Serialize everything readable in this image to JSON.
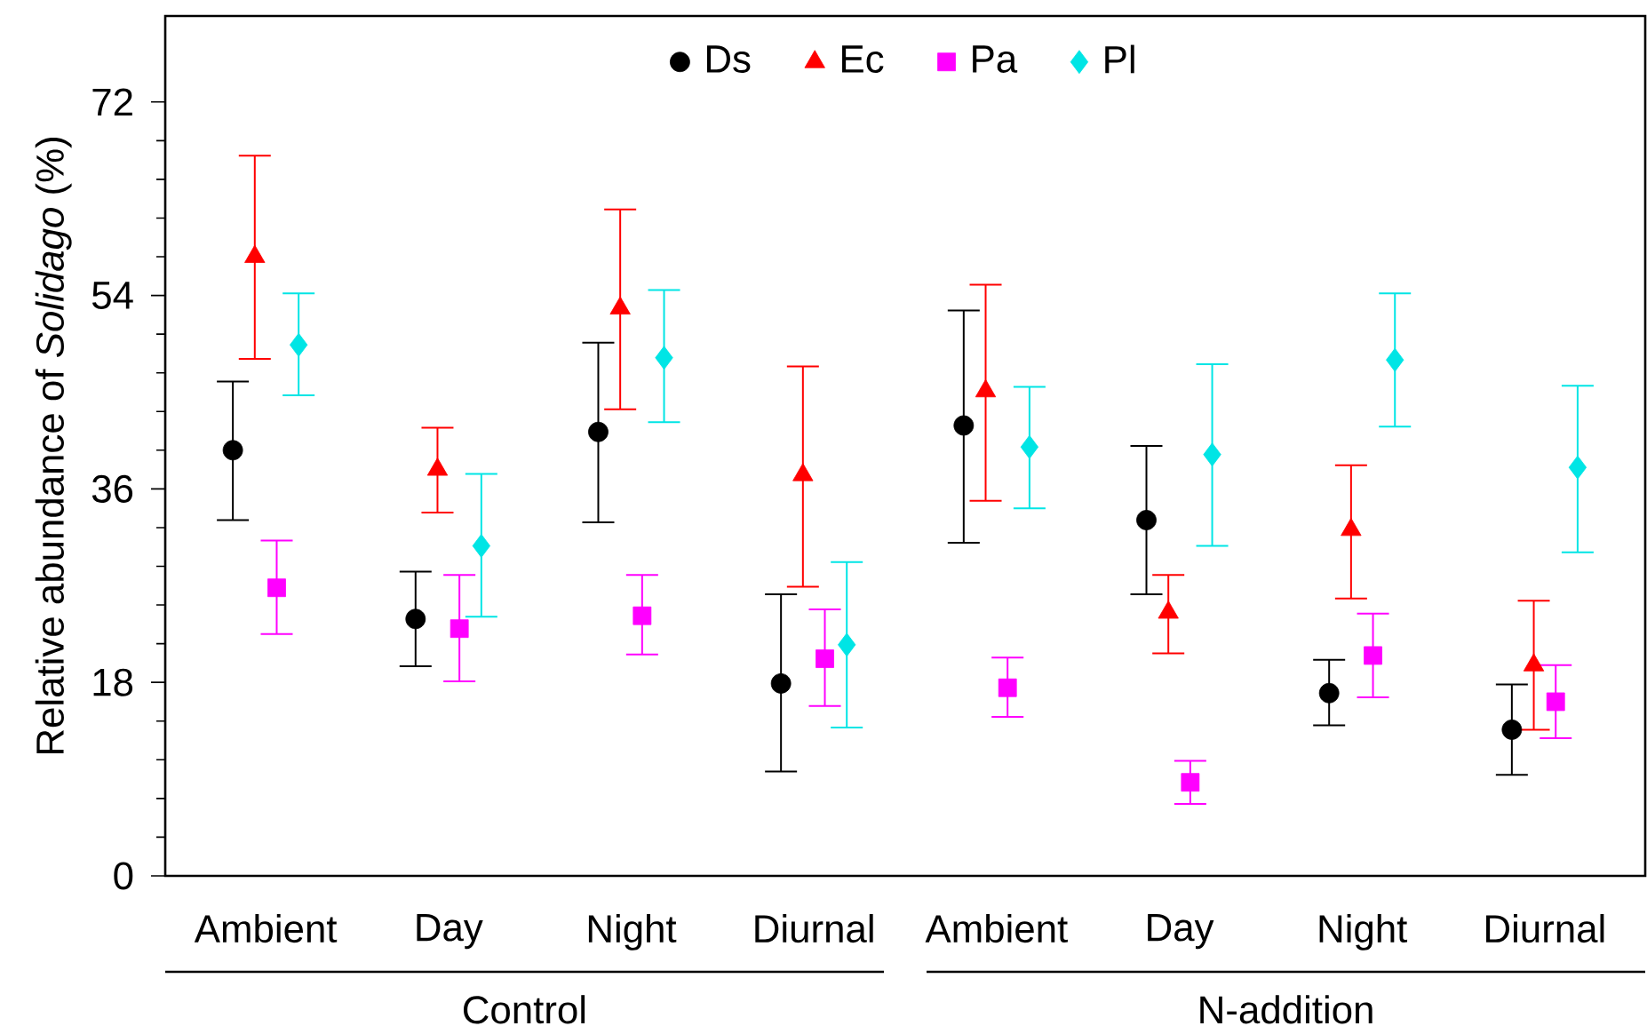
{
  "chart_data": {
    "type": "scatter",
    "ylabel": "Relative abundance of *Solidago* (%)",
    "categories": [
      "Ambient",
      "Day",
      "Night",
      "Diurnal",
      "Ambient",
      "Day",
      "Night",
      "Diurnal"
    ],
    "ylim": [
      0,
      80
    ],
    "yticks": [
      0,
      18,
      36,
      54,
      72
    ],
    "grid": false,
    "legend": "top",
    "annotations": [
      "Control",
      "N-addition"
    ],
    "series": [
      {
        "name": "Ds",
        "color": "#000000",
        "marker": "circle",
        "values": [
          39.6,
          23.9,
          41.3,
          17.9,
          41.9,
          33.1,
          17.0,
          13.6
        ],
        "errors": [
          [
            33.1,
            46.0
          ],
          [
            19.5,
            28.3
          ],
          [
            32.9,
            49.6
          ],
          [
            9.7,
            26.2
          ],
          [
            31.0,
            52.6
          ],
          [
            26.2,
            40.0
          ],
          [
            14.0,
            20.1
          ],
          [
            9.4,
            17.8
          ]
        ]
      },
      {
        "name": "Ec",
        "color": "#ff0000",
        "marker": "triangle",
        "values": [
          57.6,
          37.8,
          52.8,
          37.3,
          45.1,
          24.5,
          32.2,
          19.6
        ],
        "errors": [
          [
            48.1,
            67.0
          ],
          [
            33.8,
            41.7
          ],
          [
            43.4,
            62.0
          ],
          [
            26.9,
            47.4
          ],
          [
            34.9,
            55.0
          ],
          [
            20.7,
            28.0
          ],
          [
            25.8,
            38.2
          ],
          [
            13.6,
            25.6
          ]
        ]
      },
      {
        "name": "Pa",
        "color": "#ff00ff",
        "marker": "square",
        "values": [
          26.8,
          23.0,
          24.2,
          20.2,
          17.5,
          8.7,
          20.5,
          16.2
        ],
        "errors": [
          [
            22.5,
            31.2
          ],
          [
            18.1,
            28.0
          ],
          [
            20.6,
            28.0
          ],
          [
            15.8,
            24.8
          ],
          [
            14.8,
            20.3
          ],
          [
            6.7,
            10.7
          ],
          [
            16.6,
            24.4
          ],
          [
            12.8,
            19.6
          ]
        ]
      },
      {
        "name": "Pl",
        "color": "#00e5e5",
        "marker": "diamond",
        "values": [
          49.4,
          30.7,
          48.2,
          21.5,
          39.9,
          39.2,
          48.0,
          38.0
        ],
        "errors": [
          [
            44.7,
            54.2
          ],
          [
            24.1,
            37.4
          ],
          [
            42.2,
            54.5
          ],
          [
            13.8,
            29.2
          ],
          [
            34.2,
            45.5
          ],
          [
            30.7,
            47.6
          ],
          [
            41.8,
            54.2
          ],
          [
            30.1,
            45.6
          ]
        ]
      }
    ]
  }
}
